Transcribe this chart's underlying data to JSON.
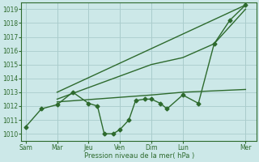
{
  "bg_color": "#cce8e8",
  "grid_color": "#aacccc",
  "line_color": "#2d6a2d",
  "xlabel": "Pression niveau de la mer( hPa )",
  "ylim": [
    1009.5,
    1019.5
  ],
  "yticks": [
    1010,
    1011,
    1012,
    1013,
    1014,
    1015,
    1016,
    1017,
    1018,
    1019
  ],
  "xtick_labels": [
    "Sam",
    "Mar",
    "Jeu",
    "Ven",
    "Dim",
    "Lun",
    "Mer"
  ],
  "xtick_positions": [
    0,
    14,
    28,
    42,
    56,
    70,
    98
  ],
  "xlim": [
    -2,
    103
  ],
  "series": [
    {
      "x": [
        0,
        7,
        14,
        21,
        28,
        32,
        35,
        39,
        42,
        46,
        49,
        53,
        56,
        60,
        63,
        70,
        77,
        84,
        91,
        98
      ],
      "y": [
        1010.5,
        1011.8,
        1012.1,
        1013.0,
        1012.2,
        1012.0,
        1010.0,
        1010.0,
        1010.3,
        1011.0,
        1012.4,
        1012.5,
        1012.5,
        1012.2,
        1011.8,
        1012.8,
        1012.2,
        1016.5,
        1018.2,
        1019.3
      ],
      "marker": "D",
      "markersize": 2.5,
      "linewidth": 1.0
    },
    {
      "x": [
        14,
        98
      ],
      "y": [
        1013.0,
        1019.3
      ],
      "marker": null,
      "linewidth": 1.0
    },
    {
      "x": [
        14,
        56,
        70,
        84,
        98
      ],
      "y": [
        1012.5,
        1015.0,
        1015.5,
        1016.5,
        1019.0
      ],
      "marker": null,
      "linewidth": 1.0
    },
    {
      "x": [
        14,
        56,
        70,
        98
      ],
      "y": [
        1012.3,
        1012.8,
        1013.0,
        1013.2
      ],
      "marker": null,
      "linewidth": 1.0
    }
  ]
}
